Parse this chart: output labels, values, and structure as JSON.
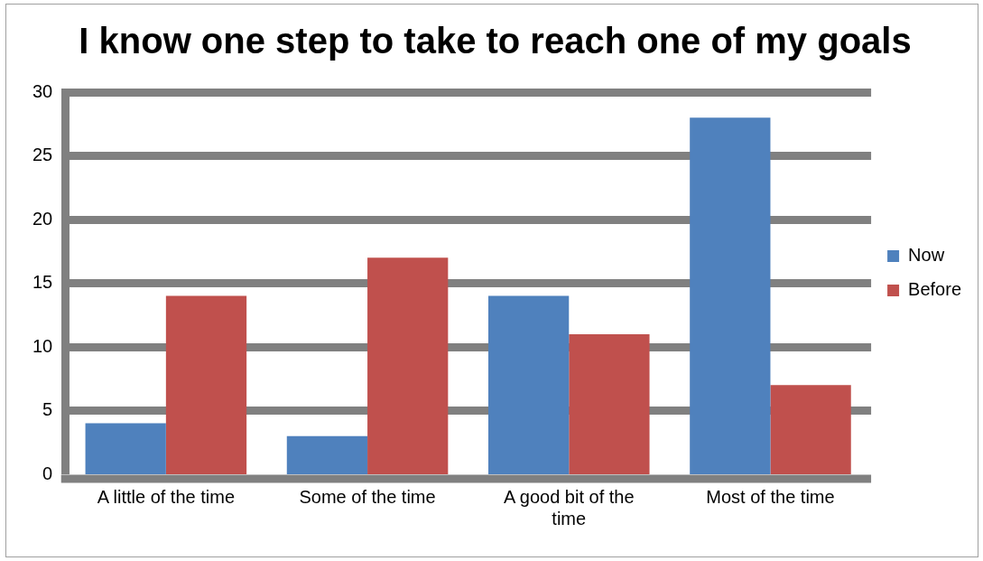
{
  "chart_data": {
    "type": "bar",
    "title": "I know one step to take to reach one of my goals",
    "categories": [
      "A little of the time",
      "Some of the time",
      "A good bit of the time",
      "Most of the time"
    ],
    "series": [
      {
        "name": "Now",
        "color": "#4f81bd",
        "values": [
          4,
          3,
          14,
          28
        ]
      },
      {
        "name": "Before",
        "color": "#c0504d",
        "values": [
          14,
          17,
          11,
          7
        ]
      }
    ],
    "ylim": [
      0,
      30
    ],
    "yticks": [
      0,
      5,
      10,
      15,
      20,
      25,
      30
    ],
    "grid": "y",
    "legend": "right"
  }
}
